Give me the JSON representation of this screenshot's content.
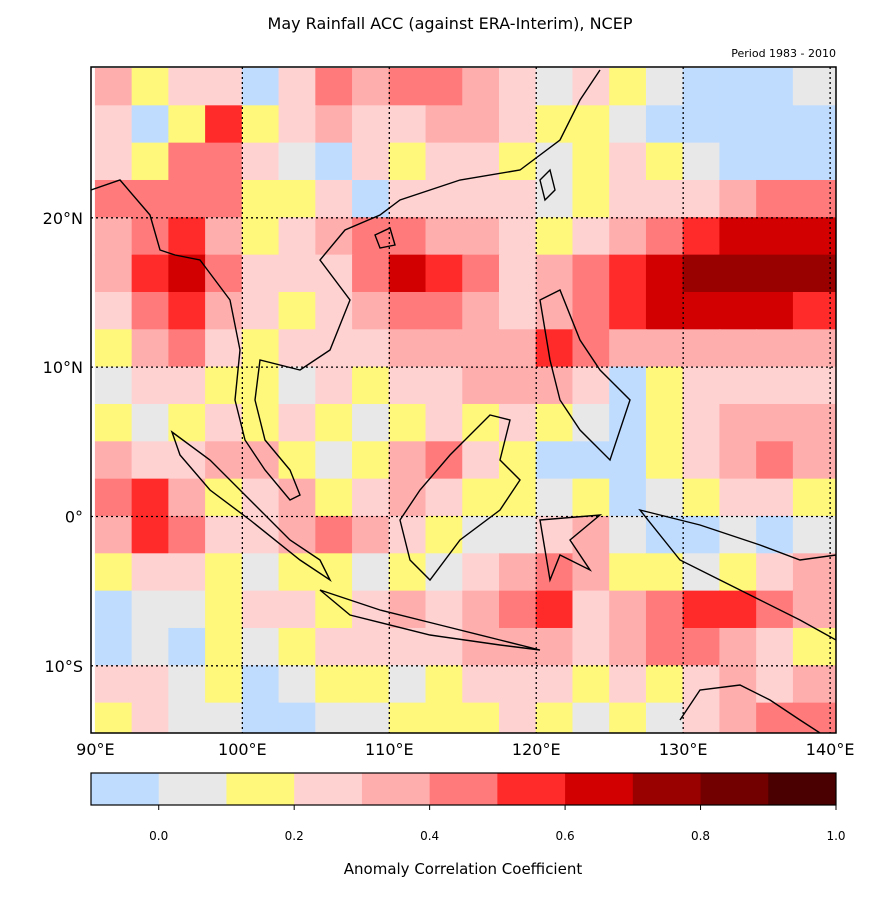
{
  "title": "May Rainfall ACC (against ERA-Interim), NCEP",
  "subtitle": "Period 1983 - 2010",
  "chart_data": {
    "type": "heatmap",
    "title": "May Rainfall ACC (against ERA-Interim), NCEP",
    "subtitle": "Period 1983 - 2010",
    "lon_range": [
      89.7,
      140.4
    ],
    "lat_range": [
      -14.5,
      30.1
    ],
    "x_ticks": [
      {
        "v": 90,
        "label": "90°E"
      },
      {
        "v": 100,
        "label": "100°E"
      },
      {
        "v": 110,
        "label": "110°E"
      },
      {
        "v": 120,
        "label": "120°E"
      },
      {
        "v": 130,
        "label": "130°E"
      },
      {
        "v": 140,
        "label": "140°E"
      }
    ],
    "y_ticks": [
      {
        "v": 20,
        "label": "20°N"
      },
      {
        "v": 10,
        "label": "10°N"
      },
      {
        "v": 0,
        "label": "0°"
      },
      {
        "v": -10,
        "label": "10°S"
      }
    ],
    "grid": "dotted",
    "grid_lon_start": 90,
    "grid_lon_step": 2.5,
    "grid_lat_start": 30,
    "grid_lat_step": -2.5,
    "values": [
      [
        0.35,
        0.15,
        0.25,
        0.25,
        -0.05,
        0.25,
        0.45,
        0.35,
        0.45,
        0.45,
        0.35,
        0.25,
        0.05,
        0.25,
        0.15,
        0.05,
        -0.05,
        -0.05,
        -0.05,
        0.05
      ],
      [
        0.25,
        -0.05,
        0.15,
        0.55,
        0.15,
        0.25,
        0.35,
        0.25,
        0.25,
        0.35,
        0.35,
        0.25,
        0.15,
        0.15,
        0.05,
        -0.05,
        -0.05,
        -0.05,
        -0.05,
        -0.05
      ],
      [
        0.25,
        0.15,
        0.45,
        0.45,
        0.25,
        0.05,
        -0.05,
        0.25,
        0.15,
        0.25,
        0.25,
        0.15,
        0.05,
        0.15,
        0.25,
        0.15,
        0.05,
        -0.05,
        -0.05,
        -0.05
      ],
      [
        0.45,
        0.45,
        0.45,
        0.45,
        0.15,
        0.15,
        0.25,
        -0.05,
        0.25,
        0.25,
        0.25,
        0.25,
        0.05,
        0.15,
        0.25,
        0.25,
        0.25,
        0.35,
        0.45,
        0.45
      ],
      [
        0.35,
        0.45,
        0.55,
        0.35,
        0.15,
        0.25,
        0.35,
        0.45,
        0.45,
        0.35,
        0.35,
        0.25,
        0.15,
        0.25,
        0.35,
        0.45,
        0.55,
        0.65,
        0.65,
        0.65
      ],
      [
        0.35,
        0.55,
        0.65,
        0.45,
        0.25,
        0.25,
        0.25,
        0.45,
        0.65,
        0.55,
        0.45,
        0.25,
        0.35,
        0.45,
        0.55,
        0.65,
        0.75,
        0.75,
        0.75,
        0.75
      ],
      [
        0.25,
        0.45,
        0.55,
        0.35,
        0.25,
        0.15,
        0.25,
        0.35,
        0.45,
        0.45,
        0.35,
        0.25,
        0.35,
        0.45,
        0.55,
        0.65,
        0.65,
        0.65,
        0.65,
        0.55
      ],
      [
        0.15,
        0.35,
        0.45,
        0.25,
        0.15,
        0.25,
        0.25,
        0.25,
        0.35,
        0.35,
        0.35,
        0.35,
        0.55,
        0.45,
        0.35,
        0.35,
        0.35,
        0.35,
        0.35,
        0.35
      ],
      [
        0.05,
        0.25,
        0.25,
        0.15,
        0.15,
        0.05,
        0.25,
        0.15,
        0.25,
        0.25,
        0.35,
        0.35,
        0.35,
        0.25,
        -0.05,
        0.15,
        0.25,
        0.25,
        0.25,
        0.25
      ],
      [
        0.15,
        0.05,
        0.15,
        0.25,
        0.15,
        0.25,
        0.15,
        0.05,
        0.15,
        0.25,
        0.15,
        0.25,
        0.15,
        0.05,
        -0.05,
        0.15,
        0.25,
        0.35,
        0.35,
        0.35
      ],
      [
        0.35,
        0.25,
        0.25,
        0.35,
        0.35,
        0.15,
        0.05,
        0.15,
        0.35,
        0.45,
        0.25,
        0.15,
        -0.05,
        -0.05,
        -0.05,
        0.15,
        0.25,
        0.35,
        0.45,
        0.35
      ],
      [
        0.45,
        0.55,
        0.35,
        0.15,
        0.25,
        0.35,
        0.15,
        0.25,
        0.35,
        0.25,
        0.15,
        0.15,
        0.05,
        0.15,
        -0.05,
        0.05,
        0.15,
        0.25,
        0.25,
        0.15
      ],
      [
        0.35,
        0.55,
        0.45,
        0.25,
        0.25,
        0.35,
        0.45,
        0.35,
        0.25,
        0.15,
        0.05,
        0.05,
        0.25,
        0.35,
        0.05,
        -0.05,
        -0.05,
        0.05,
        -0.05,
        0.05
      ],
      [
        0.15,
        0.25,
        0.25,
        0.15,
        0.05,
        0.15,
        0.15,
        0.05,
        0.15,
        0.05,
        0.25,
        0.35,
        0.45,
        0.35,
        0.15,
        0.15,
        0.05,
        0.15,
        0.25,
        0.35
      ],
      [
        -0.05,
        0.05,
        0.05,
        0.15,
        0.25,
        0.25,
        0.15,
        0.25,
        0.35,
        0.25,
        0.35,
        0.45,
        0.55,
        0.25,
        0.35,
        0.45,
        0.55,
        0.55,
        0.45,
        0.35
      ],
      [
        -0.05,
        0.05,
        -0.05,
        0.15,
        0.05,
        0.15,
        0.25,
        0.25,
        0.25,
        0.25,
        0.35,
        0.35,
        0.35,
        0.25,
        0.35,
        0.45,
        0.45,
        0.35,
        0.25,
        0.15
      ],
      [
        0.25,
        0.25,
        0.05,
        0.15,
        -0.05,
        0.05,
        0.15,
        0.15,
        0.05,
        0.15,
        0.25,
        0.25,
        0.25,
        0.15,
        0.25,
        0.15,
        0.25,
        0.35,
        0.25,
        0.35
      ],
      [
        0.15,
        0.25,
        0.05,
        0.05,
        -0.05,
        -0.05,
        0.05,
        0.05,
        0.15,
        0.15,
        0.15,
        0.25,
        0.15,
        0.05,
        0.15,
        0.05,
        0.25,
        0.35,
        0.45,
        0.45
      ]
    ],
    "colorbar": {
      "label": "Anomaly Correlation Coefficient",
      "levels": [
        -0.1,
        0.0,
        0.1,
        0.2,
        0.3,
        0.4,
        0.5,
        0.6,
        0.7,
        0.8,
        0.9,
        1.0
      ],
      "colors": [
        "#bfdcff",
        "#e8e8e8",
        "#fff87a",
        "#ffd2d2",
        "#ffaeae",
        "#ff7b7b",
        "#ff2a2a",
        "#d20000",
        "#990000",
        "#730000",
        "#4a0000"
      ],
      "ticks": [
        {
          "v": 0.0,
          "label": "0.0"
        },
        {
          "v": 0.2,
          "label": "0.2"
        },
        {
          "v": 0.4,
          "label": "0.4"
        },
        {
          "v": 0.6,
          "label": "0.6"
        },
        {
          "v": 0.8,
          "label": "0.8"
        },
        {
          "v": 1.0,
          "label": "1.0"
        }
      ]
    }
  }
}
